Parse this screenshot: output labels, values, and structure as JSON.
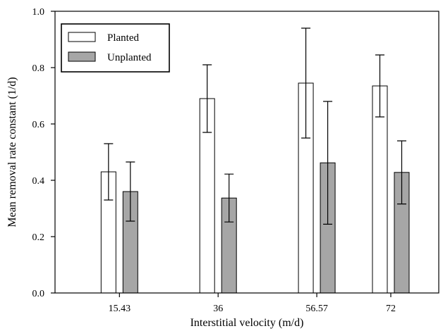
{
  "chart_data": {
    "type": "bar",
    "xlabel": "Interstitial velocity (m/d)",
    "ylabel": "Mean removal rate constant (1/d)",
    "categories": [
      "15.43",
      "36",
      "56.57",
      "72"
    ],
    "x": [
      15.43,
      36,
      56.57,
      72
    ],
    "xlim": [
      2,
      82
    ],
    "ylim": [
      0,
      1.0
    ],
    "y_ticks": [
      "0.0",
      "0.2",
      "0.4",
      "0.6",
      "0.8",
      "1.0"
    ],
    "grid": false,
    "error_bars": true,
    "legend_position": "top-left",
    "series": [
      {
        "name": "Planted",
        "color": "#ffffff",
        "values": [
          0.43,
          0.69,
          0.745,
          0.735
        ],
        "errors": [
          0.1,
          0.12,
          0.195,
          0.11
        ]
      },
      {
        "name": "Unplanted",
        "color": "#a6a6a6",
        "values": [
          0.36,
          0.337,
          0.462,
          0.428
        ],
        "errors": [
          0.105,
          0.085,
          0.218,
          0.112
        ]
      }
    ]
  }
}
